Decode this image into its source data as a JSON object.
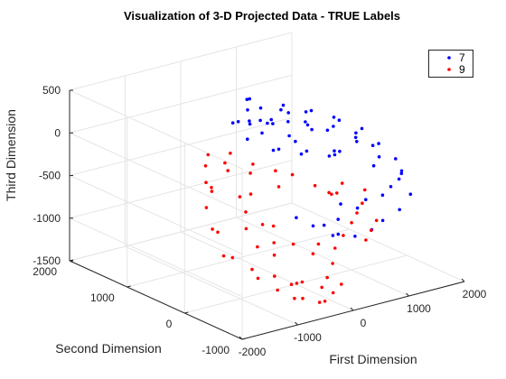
{
  "chart_data": {
    "type": "scatter",
    "title": "Visualization of 3-D Projected Data - TRUE Labels",
    "xlabel": "First Dimension",
    "ylabel": "Second Dimension",
    "zlabel": "Third Dimension",
    "xlim": [
      -2000,
      2000
    ],
    "ylim": [
      -1000,
      2000
    ],
    "zlim": [
      -1500,
      500
    ],
    "xticks": [
      "-2000",
      "-1000",
      "0",
      "1000",
      "2000"
    ],
    "yticks": [
      "-1000",
      "0",
      "1000",
      "2000"
    ],
    "zticks": [
      "-1500",
      "-1000",
      "-500",
      "0",
      "500"
    ],
    "grid": true,
    "legend_position": "top-right",
    "series": [
      {
        "name": "7",
        "color": "#0000ff",
        "points": [
          [
            -350,
            500,
            450
          ],
          [
            -50,
            800,
            430
          ],
          [
            100,
            900,
            380
          ],
          [
            250,
            500,
            350
          ],
          [
            -200,
            300,
            330
          ],
          [
            500,
            700,
            300
          ],
          [
            700,
            500,
            250
          ],
          [
            -400,
            200,
            280
          ],
          [
            0,
            400,
            260
          ],
          [
            300,
            900,
            240
          ],
          [
            900,
            600,
            200
          ],
          [
            1100,
            400,
            150
          ],
          [
            -100,
            700,
            180
          ],
          [
            600,
            300,
            120
          ],
          [
            800,
            900,
            100
          ],
          [
            1300,
            500,
            50
          ],
          [
            1500,
            300,
            -20
          ],
          [
            1200,
            100,
            -60
          ],
          [
            200,
            200,
            80
          ],
          [
            -250,
            600,
            60
          ],
          [
            400,
            500,
            20
          ],
          [
            1000,
            800,
            -10
          ],
          [
            1400,
            700,
            -100
          ],
          [
            1600,
            500,
            -150
          ],
          [
            1700,
            200,
            -200
          ],
          [
            1500,
            0,
            -260
          ],
          [
            1300,
            -100,
            -300
          ],
          [
            1100,
            300,
            -220
          ],
          [
            900,
            200,
            -150
          ],
          [
            700,
            0,
            -100
          ],
          [
            500,
            -100,
            -50
          ],
          [
            300,
            100,
            -20
          ],
          [
            100,
            0,
            10
          ],
          [
            -100,
            200,
            40
          ],
          [
            -300,
            100,
            90
          ],
          [
            1800,
            400,
            -300
          ],
          [
            1900,
            100,
            -380
          ],
          [
            1750,
            -150,
            -420
          ],
          [
            1600,
            -250,
            -460
          ],
          [
            1400,
            -300,
            -500
          ],
          [
            1200,
            -350,
            -550
          ],
          [
            1000,
            -250,
            -600
          ],
          [
            800,
            -300,
            -650
          ],
          [
            600,
            -200,
            -600
          ],
          [
            400,
            -350,
            -700
          ],
          [
            200,
            -300,
            -750
          ],
          [
            1700,
            600,
            -250
          ],
          [
            1450,
            850,
            -200
          ],
          [
            1250,
            1000,
            -150
          ],
          [
            1000,
            1100,
            -100
          ],
          [
            750,
            1150,
            -50
          ],
          [
            500,
            1100,
            0
          ],
          [
            250,
            1050,
            50
          ],
          [
            0,
            1000,
            100
          ],
          [
            -200,
            900,
            150
          ],
          [
            1850,
            -50,
            -500
          ],
          [
            1650,
            -400,
            -600
          ],
          [
            1350,
            -500,
            -700
          ],
          [
            1100,
            -450,
            -800
          ],
          [
            850,
            -500,
            -850
          ],
          [
            600,
            -450,
            -900
          ],
          [
            350,
            -400,
            -850
          ],
          [
            150,
            -500,
            -800
          ],
          [
            -50,
            -350,
            -700
          ],
          [
            -250,
            -250,
            -600
          ]
        ]
      },
      {
        "name": "9",
        "color": "#ff0000",
        "points": [
          [
            -1200,
            300,
            -300
          ],
          [
            -1000,
            500,
            -350
          ],
          [
            -800,
            200,
            -400
          ],
          [
            -600,
            600,
            -250
          ],
          [
            -900,
            0,
            -500
          ],
          [
            -1100,
            -200,
            -600
          ],
          [
            -700,
            -100,
            -650
          ],
          [
            -500,
            300,
            -450
          ],
          [
            -300,
            500,
            -300
          ],
          [
            -100,
            200,
            -400
          ],
          [
            -1300,
            100,
            -700
          ],
          [
            -1000,
            -300,
            -800
          ],
          [
            -800,
            -400,
            -900
          ],
          [
            -600,
            -200,
            -850
          ],
          [
            -400,
            0,
            -750
          ],
          [
            -200,
            -150,
            -950
          ],
          [
            0,
            -300,
            -1050
          ],
          [
            200,
            -200,
            -1000
          ],
          [
            -1400,
            -100,
            -900
          ],
          [
            -1200,
            -400,
            -1000
          ],
          [
            -900,
            -500,
            -1100
          ],
          [
            -700,
            -600,
            -1200
          ],
          [
            -500,
            -500,
            -1250
          ],
          [
            -300,
            -400,
            -1300
          ],
          [
            -100,
            -550,
            -1350
          ],
          [
            100,
            -450,
            -1300
          ],
          [
            300,
            -350,
            -1200
          ],
          [
            500,
            -200,
            -1100
          ],
          [
            700,
            -150,
            -1000
          ],
          [
            900,
            -100,
            -900
          ],
          [
            1100,
            0,
            -850
          ],
          [
            1300,
            100,
            -800
          ],
          [
            -1500,
            0,
            -600
          ],
          [
            -1350,
            250,
            -450
          ],
          [
            -1150,
            450,
            -250
          ],
          [
            -950,
            650,
            -150
          ],
          [
            -750,
            800,
            -100
          ],
          [
            -550,
            700,
            -200
          ],
          [
            -350,
            800,
            -150
          ],
          [
            -150,
            600,
            -250
          ],
          [
            50,
            400,
            -300
          ],
          [
            250,
            300,
            -350
          ],
          [
            450,
            100,
            -450
          ],
          [
            650,
            50,
            -550
          ],
          [
            850,
            200,
            -650
          ],
          [
            1050,
            300,
            -700
          ],
          [
            1250,
            400,
            -650
          ],
          [
            1450,
            200,
            -700
          ],
          [
            -600,
            -700,
            -1350
          ],
          [
            -400,
            -800,
            -1400
          ],
          [
            -200,
            -700,
            -1450
          ],
          [
            0,
            -650,
            -1400
          ],
          [
            200,
            -600,
            -1350
          ],
          [
            -800,
            -750,
            -1300
          ],
          [
            -1000,
            -650,
            -1200
          ],
          [
            -1250,
            -550,
            -1050
          ],
          [
            -1450,
            -300,
            -850
          ],
          [
            1350,
            -100,
            -950
          ],
          [
            1150,
            -200,
            -1000
          ],
          [
            950,
            -300,
            -1050
          ]
        ]
      }
    ]
  }
}
